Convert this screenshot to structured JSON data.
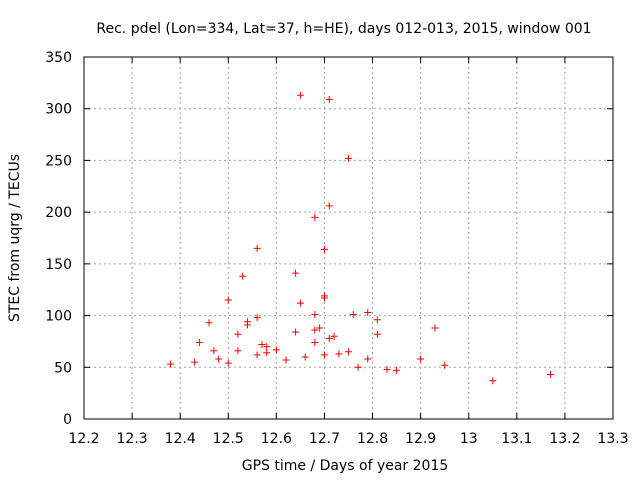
{
  "chart_data": {
    "type": "scatter",
    "title": "Rec. pdel (Lon=334, Lat=37, h=HE), days 012-013, 2015, window 001",
    "xlabel": "GPS time / Days of year 2015",
    "ylabel": "STEC from uqrg / TECUs",
    "xlim": [
      12.2,
      13.3
    ],
    "ylim": [
      0,
      350
    ],
    "xticks": [
      "12.2",
      "12.3",
      "12.4",
      "12.5",
      "12.6",
      "12.7",
      "12.8",
      "12.9",
      "13",
      "13.1",
      "13.2",
      "13.3"
    ],
    "yticks": [
      "0",
      "50",
      "100",
      "150",
      "200",
      "250",
      "300",
      "350"
    ],
    "grid": true,
    "marker": "+",
    "color": "#ff0000",
    "series": [
      {
        "name": "STEC",
        "points": [
          [
            12.65,
            313
          ],
          [
            12.71,
            309
          ],
          [
            12.75,
            252
          ],
          [
            12.71,
            206
          ],
          [
            12.68,
            195
          ],
          [
            12.56,
            165
          ],
          [
            12.7,
            164
          ],
          [
            12.53,
            138
          ],
          [
            12.64,
            141
          ],
          [
            12.7,
            119
          ],
          [
            12.7,
            117
          ],
          [
            12.5,
            115
          ],
          [
            12.65,
            112
          ],
          [
            12.79,
            103
          ],
          [
            12.76,
            101
          ],
          [
            12.68,
            101
          ],
          [
            12.81,
            96
          ],
          [
            12.56,
            98
          ],
          [
            12.54,
            94
          ],
          [
            12.46,
            93
          ],
          [
            12.54,
            91
          ],
          [
            12.93,
            88
          ],
          [
            12.52,
            82
          ],
          [
            12.64,
            84
          ],
          [
            12.68,
            86
          ],
          [
            12.69,
            88
          ],
          [
            12.72,
            80
          ],
          [
            12.71,
            78
          ],
          [
            12.81,
            82
          ],
          [
            12.68,
            74
          ],
          [
            12.57,
            72
          ],
          [
            12.58,
            70
          ],
          [
            12.44,
            74
          ],
          [
            12.52,
            66
          ],
          [
            12.47,
            66
          ],
          [
            12.56,
            62
          ],
          [
            12.58,
            64
          ],
          [
            12.6,
            67
          ],
          [
            12.66,
            60
          ],
          [
            12.7,
            62
          ],
          [
            12.73,
            63
          ],
          [
            12.75,
            65
          ],
          [
            12.79,
            58
          ],
          [
            12.9,
            58
          ],
          [
            12.95,
            52
          ],
          [
            13.17,
            43
          ],
          [
            13.05,
            37
          ],
          [
            12.48,
            58
          ],
          [
            12.43,
            55
          ],
          [
            12.38,
            53
          ],
          [
            12.5,
            54
          ],
          [
            12.62,
            57
          ],
          [
            12.85,
            47
          ],
          [
            12.83,
            48
          ],
          [
            12.77,
            50
          ]
        ]
      }
    ]
  }
}
